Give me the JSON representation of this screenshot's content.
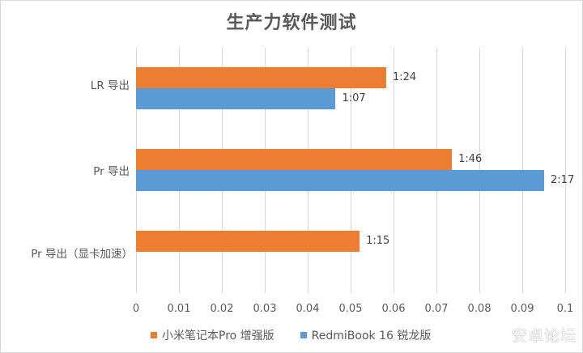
{
  "chart_data": {
    "type": "bar",
    "orientation": "horizontal",
    "title": "生产力软件测试",
    "categories": [
      "LR 导出",
      "Pr 导出",
      "Pr 导出（显卡加速）"
    ],
    "series": [
      {
        "name": "小米笔记本Pro 增强版",
        "color": "#ED7D31",
        "values": [
          0.0583,
          0.0736,
          0.0521
        ],
        "labels": [
          "1:24",
          "1:46",
          "1:15"
        ]
      },
      {
        "name": "RedmiBook 16 锐龙版",
        "color": "#5B9BD5",
        "values": [
          0.0465,
          0.0951,
          null
        ],
        "labels": [
          "1:07",
          "2:17",
          ""
        ]
      }
    ],
    "xlim": [
      0,
      0.1
    ],
    "xticks": [
      "0",
      "0.01",
      "0.02",
      "0.03",
      "0.04",
      "0.05",
      "0.06",
      "0.07",
      "0.08",
      "0.09",
      "0.1"
    ],
    "xlabel": "",
    "ylabel": "",
    "grid": true,
    "legend_position": "bottom"
  },
  "watermark": "安卓论坛"
}
